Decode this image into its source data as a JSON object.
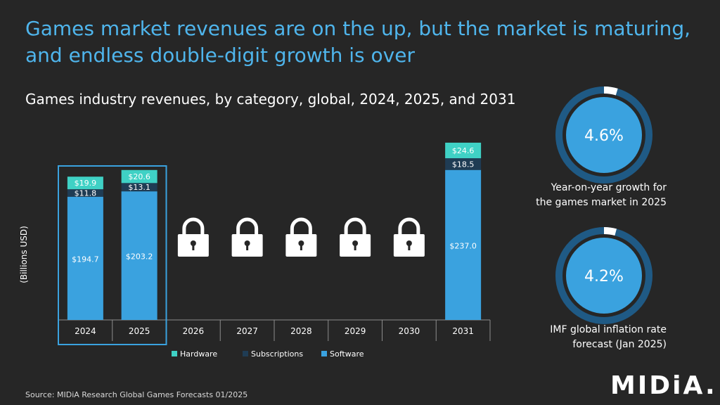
{
  "page": {
    "headline": "Games market revenues are on the up, but the market is maturing, and endless double-digit growth is over",
    "source": "Source: MIDiA Research Global Games Forecasts 01/2025",
    "logo_text": "MIDiA.",
    "colors": {
      "background": "#262626",
      "accent": "#4fb5ec"
    }
  },
  "chart_data": {
    "type": "bar",
    "stacked": true,
    "title": "Games industry revenues, by category, global, 2024, 2025, and 2031",
    "ylabel": "(Billions USD)",
    "xlabel": "",
    "categories": [
      "2024",
      "2025",
      "2026",
      "2027",
      "2028",
      "2029",
      "2030",
      "2031"
    ],
    "locked_categories": [
      "2026",
      "2027",
      "2028",
      "2029",
      "2030"
    ],
    "highlighted_categories": [
      "2024",
      "2025"
    ],
    "locked_icon": "lock-icon",
    "series": [
      {
        "name": "Software",
        "color": "#3aa2df",
        "values": [
          194.7,
          203.2,
          null,
          null,
          null,
          null,
          null,
          237.0
        ],
        "labels": [
          "$194.7",
          "$203.2",
          null,
          null,
          null,
          null,
          null,
          "$237.0"
        ]
      },
      {
        "name": "Subscriptions",
        "color": "#1f3c54",
        "values": [
          11.8,
          13.1,
          null,
          null,
          null,
          null,
          null,
          18.5
        ],
        "labels": [
          "$11.8",
          "$13.1",
          null,
          null,
          null,
          null,
          null,
          "$18.5"
        ]
      },
      {
        "name": "Hardware",
        "color": "#3fd1c5",
        "values": [
          19.9,
          20.6,
          null,
          null,
          null,
          null,
          null,
          24.6
        ],
        "labels": [
          "$19.9",
          "$20.6",
          null,
          null,
          null,
          null,
          null,
          "$24.6"
        ]
      }
    ],
    "legend": {
      "placement": "bottom",
      "order": [
        "Hardware",
        "Subscriptions",
        "Software"
      ]
    },
    "ylim": [
      0,
      300
    ],
    "grid": false
  },
  "rings": [
    {
      "value_text": "4.6%",
      "label_lines": [
        "Year-on-year growth for",
        "the games market in 2025"
      ],
      "value": 4.6
    },
    {
      "value_text": "4.2%",
      "label_lines": [
        "IMF global inflation rate",
        "forecast (Jan 2025)"
      ],
      "value": 4.2
    }
  ]
}
